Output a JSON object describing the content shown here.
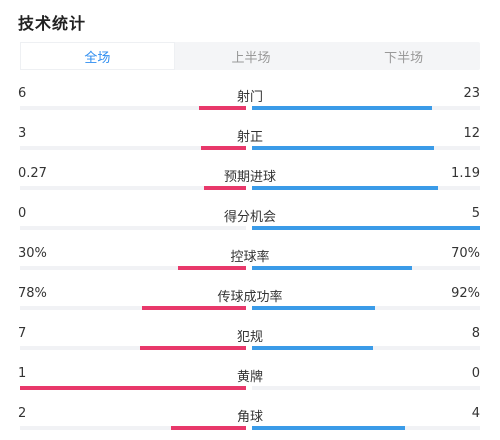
{
  "title": "技术统计",
  "tabs": [
    {
      "label": "全场",
      "active": true
    },
    {
      "label": "上半场",
      "active": false
    },
    {
      "label": "下半场",
      "active": false
    }
  ],
  "colors": {
    "home": "#e8386a",
    "away": "#3a9be8",
    "track": "#f1f2f5",
    "tab_active": "#2f8ef0"
  },
  "stats": [
    {
      "label": "射门",
      "home": "6",
      "away": "23",
      "home_frac": 0.21,
      "away_frac": 0.79
    },
    {
      "label": "射正",
      "home": "3",
      "away": "12",
      "home_frac": 0.2,
      "away_frac": 0.8
    },
    {
      "label": "预期进球",
      "home": "0.27",
      "away": "1.19",
      "home_frac": 0.185,
      "away_frac": 0.815
    },
    {
      "label": "得分机会",
      "home": "0",
      "away": "5",
      "home_frac": 0.0,
      "away_frac": 1.0
    },
    {
      "label": "控球率",
      "home": "30%",
      "away": "70%",
      "home_frac": 0.3,
      "away_frac": 0.7
    },
    {
      "label": "传球成功率",
      "home": "78%",
      "away": "92%",
      "home_frac": 0.46,
      "away_frac": 0.54
    },
    {
      "label": "犯规",
      "home": "7",
      "away": "8",
      "home_frac": 0.47,
      "away_frac": 0.53
    },
    {
      "label": "黄牌",
      "home": "1",
      "away": "0",
      "home_frac": 1.0,
      "away_frac": 0.0
    },
    {
      "label": "角球",
      "home": "2",
      "away": "4",
      "home_frac": 0.33,
      "away_frac": 0.67
    }
  ]
}
